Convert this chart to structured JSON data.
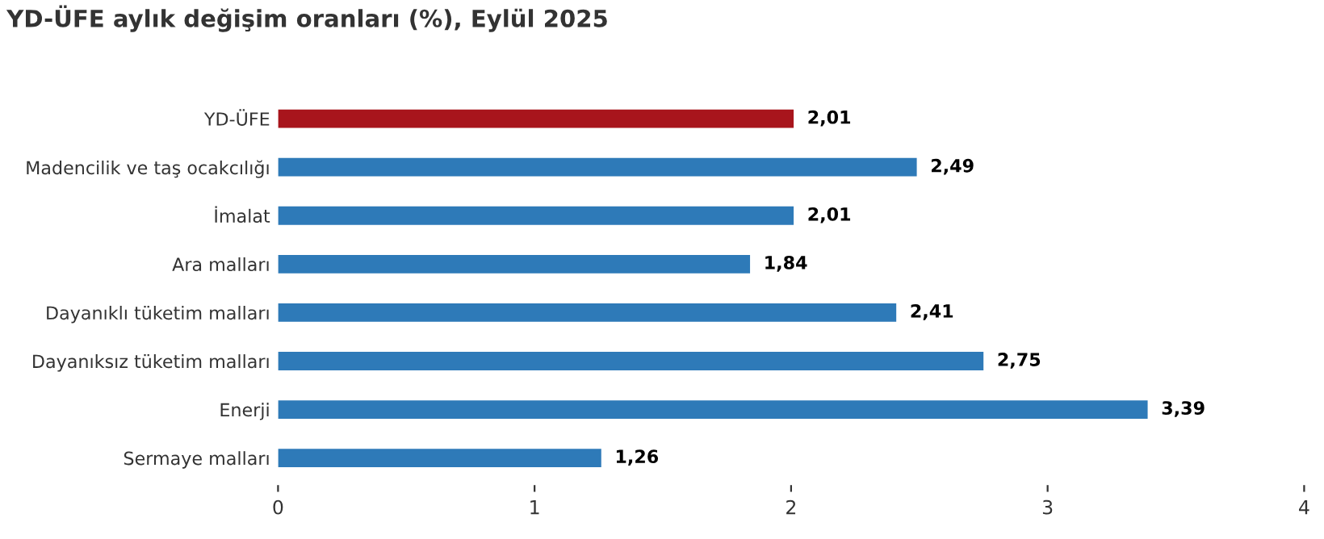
{
  "chart_data": {
    "type": "bar",
    "orientation": "horizontal",
    "title": "YD-ÜFE aylık değişim oranları (%), Eylül 2025",
    "categories": [
      "YD-ÜFE",
      "Madencilik ve taş ocakcılığı",
      "İmalat",
      "Ara malları",
      "Dayanıklı tüketim malları",
      "Dayanıksız tüketim malları",
      "Enerji",
      "Sermaye malları"
    ],
    "values": [
      2.01,
      2.49,
      2.01,
      1.84,
      2.41,
      2.75,
      3.39,
      1.26
    ],
    "colors": [
      "#a8151c",
      "#2e7ab8",
      "#2e7ab8",
      "#2e7ab8",
      "#2e7ab8",
      "#2e7ab8",
      "#2e7ab8",
      "#2e7ab8"
    ],
    "value_labels": [
      "2,01",
      "2,49",
      "2,01",
      "1,84",
      "2,41",
      "2,75",
      "3,39",
      "1,26"
    ],
    "xlim": [
      0,
      4
    ],
    "xticks": [
      0,
      1,
      2,
      3,
      4
    ],
    "grid": false,
    "legend": false
  }
}
